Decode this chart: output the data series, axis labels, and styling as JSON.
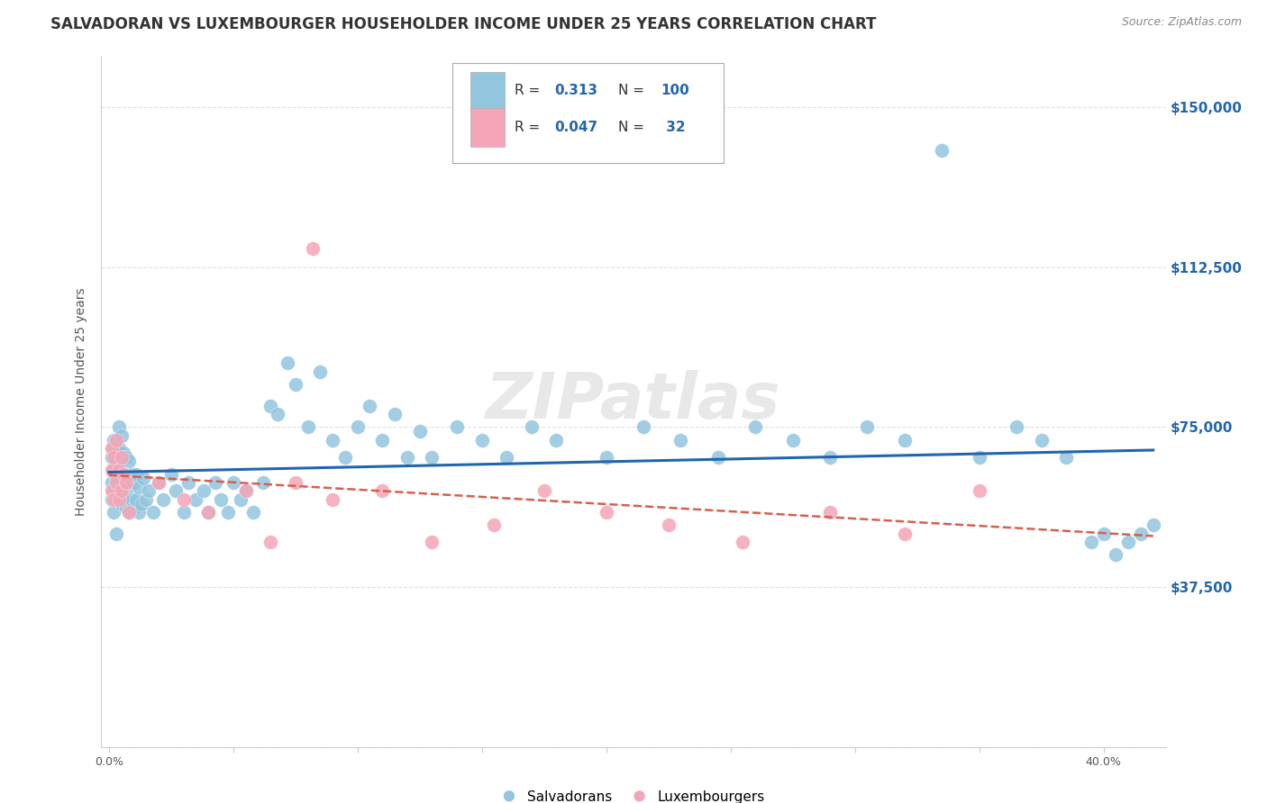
{
  "title": "SALVADORAN VS LUXEMBOURGER HOUSEHOLDER INCOME UNDER 25 YEARS CORRELATION CHART",
  "source": "Source: ZipAtlas.com",
  "ylabel": "Householder Income Under 25 years",
  "watermark": "ZIPatlas",
  "salvadoran_color": "#92c5de",
  "luxembourger_color": "#f4a6b8",
  "blue_line_color": "#2166ac",
  "pink_line_color": "#d6604d",
  "y_ticks": [
    0,
    37500,
    75000,
    112500,
    150000
  ],
  "y_tick_labels": [
    "",
    "$37,500",
    "$75,000",
    "$112,500",
    "$150,000"
  ],
  "title_fontsize": 12,
  "source_fontsize": 9,
  "axis_label_fontsize": 10,
  "tick_fontsize": 9,
  "watermark_fontsize": 52,
  "background_color": "#ffffff",
  "grid_color": "#dddddd",
  "right_tick_color": "#2166ac",
  "sal_x": [
    0.001,
    0.001,
    0.001,
    0.002,
    0.002,
    0.002,
    0.002,
    0.002,
    0.003,
    0.003,
    0.003,
    0.003,
    0.003,
    0.004,
    0.004,
    0.004,
    0.004,
    0.005,
    0.005,
    0.005,
    0.005,
    0.006,
    0.006,
    0.006,
    0.007,
    0.007,
    0.007,
    0.008,
    0.008,
    0.008,
    0.009,
    0.009,
    0.01,
    0.01,
    0.011,
    0.011,
    0.012,
    0.012,
    0.013,
    0.014,
    0.015,
    0.016,
    0.018,
    0.02,
    0.022,
    0.025,
    0.027,
    0.03,
    0.032,
    0.035,
    0.038,
    0.04,
    0.043,
    0.045,
    0.048,
    0.05,
    0.053,
    0.055,
    0.058,
    0.062,
    0.065,
    0.068,
    0.072,
    0.075,
    0.08,
    0.085,
    0.09,
    0.095,
    0.1,
    0.105,
    0.11,
    0.115,
    0.12,
    0.125,
    0.13,
    0.14,
    0.15,
    0.16,
    0.17,
    0.18,
    0.2,
    0.215,
    0.23,
    0.245,
    0.26,
    0.275,
    0.29,
    0.305,
    0.32,
    0.335,
    0.35,
    0.365,
    0.375,
    0.385,
    0.395,
    0.4,
    0.405,
    0.41,
    0.415,
    0.42
  ],
  "sal_y": [
    58000,
    62000,
    68000,
    55000,
    60000,
    65000,
    70000,
    72000,
    58000,
    63000,
    67000,
    72000,
    50000,
    60000,
    65000,
    70000,
    75000,
    57000,
    63000,
    68000,
    73000,
    58000,
    64000,
    69000,
    56000,
    62000,
    68000,
    55000,
    61000,
    67000,
    58000,
    64000,
    56000,
    62000,
    58000,
    64000,
    55000,
    61000,
    57000,
    63000,
    58000,
    60000,
    55000,
    62000,
    58000,
    64000,
    60000,
    55000,
    62000,
    58000,
    60000,
    55000,
    62000,
    58000,
    55000,
    62000,
    58000,
    60000,
    55000,
    62000,
    80000,
    78000,
    90000,
    85000,
    75000,
    88000,
    72000,
    68000,
    75000,
    80000,
    72000,
    78000,
    68000,
    74000,
    68000,
    75000,
    72000,
    68000,
    75000,
    72000,
    68000,
    75000,
    72000,
    68000,
    75000,
    72000,
    68000,
    75000,
    72000,
    140000,
    68000,
    75000,
    72000,
    68000,
    48000,
    50000,
    45000,
    48000,
    50000,
    52000
  ],
  "lux_x": [
    0.001,
    0.001,
    0.001,
    0.002,
    0.002,
    0.003,
    0.003,
    0.004,
    0.004,
    0.005,
    0.005,
    0.006,
    0.007,
    0.008,
    0.082,
    0.02,
    0.03,
    0.04,
    0.055,
    0.065,
    0.075,
    0.09,
    0.11,
    0.13,
    0.155,
    0.175,
    0.2,
    0.225,
    0.255,
    0.29,
    0.32,
    0.35
  ],
  "lux_y": [
    60000,
    65000,
    70000,
    58000,
    68000,
    62000,
    72000,
    58000,
    65000,
    60000,
    68000,
    64000,
    62000,
    55000,
    117000,
    62000,
    58000,
    55000,
    60000,
    48000,
    62000,
    58000,
    60000,
    48000,
    52000,
    60000,
    55000,
    52000,
    48000,
    55000,
    50000,
    60000
  ]
}
